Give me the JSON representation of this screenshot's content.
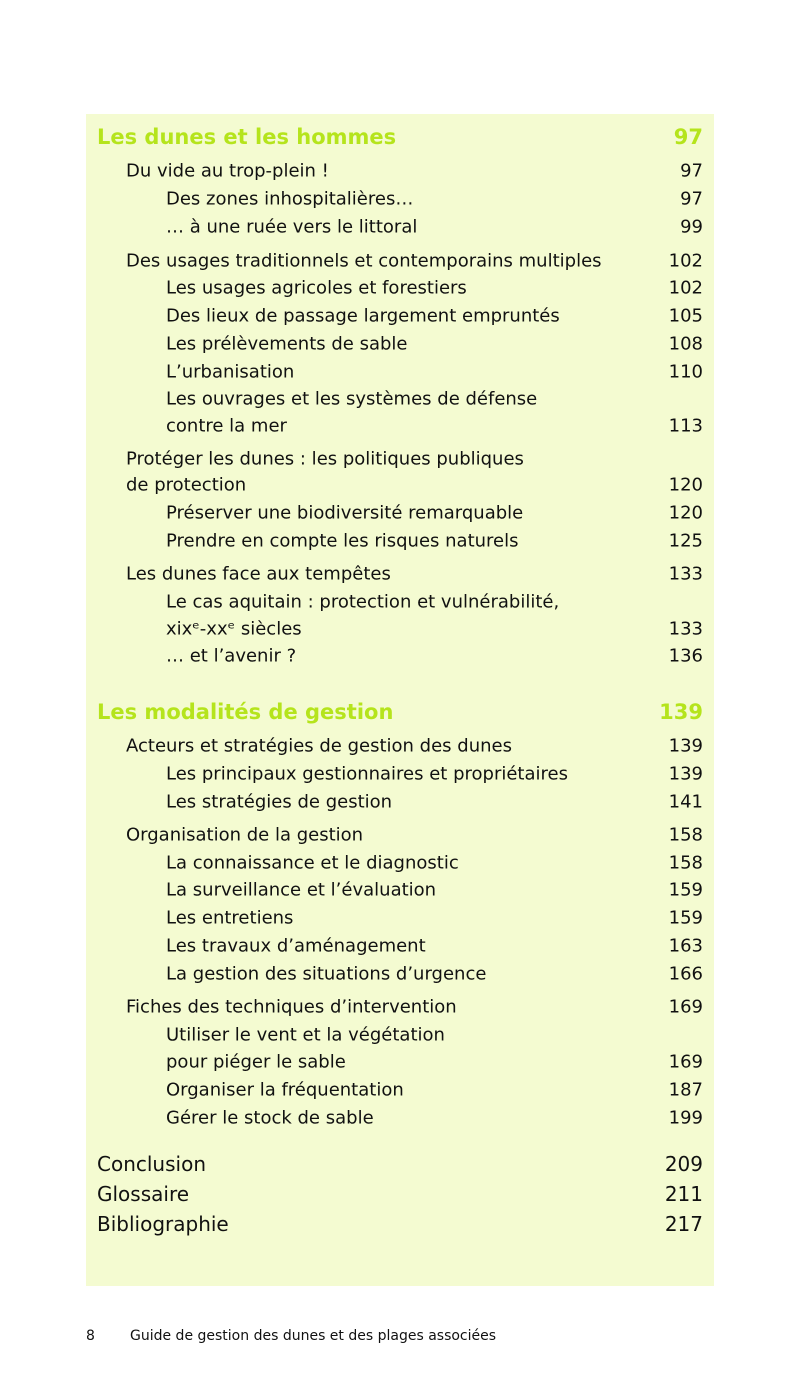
{
  "toc": {
    "sections": [
      {
        "title": "Les dunes et les hommes",
        "page": "97",
        "chapters": [
          {
            "lines": [
              "Du vide au trop-plein !"
            ],
            "page": "97",
            "items": [
              {
                "lines": [
                  "Des zones inhospitalières…"
                ],
                "page": "97"
              },
              {
                "lines": [
                  "… à une ruée vers le littoral"
                ],
                "page": "99"
              }
            ]
          },
          {
            "lines": [
              "Des usages traditionnels et contemporains multiples"
            ],
            "page": "102",
            "items": [
              {
                "lines": [
                  "Les usages agricoles et forestiers"
                ],
                "page": "102"
              },
              {
                "lines": [
                  "Des lieux de passage largement empruntés"
                ],
                "page": "105"
              },
              {
                "lines": [
                  "Les prélèvements de sable"
                ],
                "page": "108"
              },
              {
                "lines": [
                  "L’urbanisation"
                ],
                "page": "110"
              },
              {
                "lines": [
                  "Les ouvrages et les systèmes de défense",
                  "contre la mer"
                ],
                "page": "113"
              }
            ]
          },
          {
            "lines": [
              "Protéger les dunes : les politiques publiques",
              "de protection"
            ],
            "page": "120",
            "items": [
              {
                "lines": [
                  "Préserver une biodiversité remarquable"
                ],
                "page": "120"
              },
              {
                "lines": [
                  "Prendre en compte les risques naturels"
                ],
                "page": "125"
              }
            ]
          },
          {
            "lines": [
              "Les dunes face aux tempêtes"
            ],
            "page": "133",
            "items": [
              {
                "lines": [
                  "Le cas aquitain : protection et vulnérabilité,",
                  "xixᵉ-xxᵉ siècles"
                ],
                "page": "133"
              },
              {
                "lines": [
                  "… et l’avenir ?"
                ],
                "page": "136"
              }
            ]
          }
        ]
      },
      {
        "title": "Les modalités de gestion",
        "page": "139",
        "chapters": [
          {
            "lines": [
              "Acteurs et stratégies de gestion des dunes"
            ],
            "page": "139",
            "items": [
              {
                "lines": [
                  "Les principaux gestionnaires et propriétaires"
                ],
                "page": "139"
              },
              {
                "lines": [
                  "Les stratégies de gestion"
                ],
                "page": "141"
              }
            ]
          },
          {
            "lines": [
              "Organisation de la gestion"
            ],
            "page": "158",
            "items": [
              {
                "lines": [
                  "La connaissance et le diagnostic"
                ],
                "page": "158"
              },
              {
                "lines": [
                  "La surveillance et l’évaluation"
                ],
                "page": "159"
              },
              {
                "lines": [
                  "Les entretiens"
                ],
                "page": "159"
              },
              {
                "lines": [
                  "Les travaux d’aménagement"
                ],
                "page": "163"
              },
              {
                "lines": [
                  "La gestion des situations d’urgence"
                ],
                "page": "166"
              }
            ]
          },
          {
            "lines": [
              "Fiches des techniques d’intervention"
            ],
            "page": "169",
            "items": [
              {
                "lines": [
                  "Utiliser le vent et la végétation",
                  "pour piéger le sable"
                ],
                "page": "169"
              },
              {
                "lines": [
                  "Organiser la fréquentation"
                ],
                "page": "187"
              },
              {
                "lines": [
                  "Gérer le stock de sable"
                ],
                "page": "199"
              }
            ]
          }
        ]
      }
    ],
    "end": [
      {
        "title": "Conclusion",
        "page": "209"
      },
      {
        "title": "Glossaire",
        "page": "211"
      },
      {
        "title": "Bibliographie",
        "page": "217"
      }
    ],
    "accent_color": "#b5e41c",
    "background_color": "#f4fbd1"
  },
  "footer": {
    "page_number": "8",
    "book_title": "Guide de gestion des dunes et des plages associées"
  }
}
